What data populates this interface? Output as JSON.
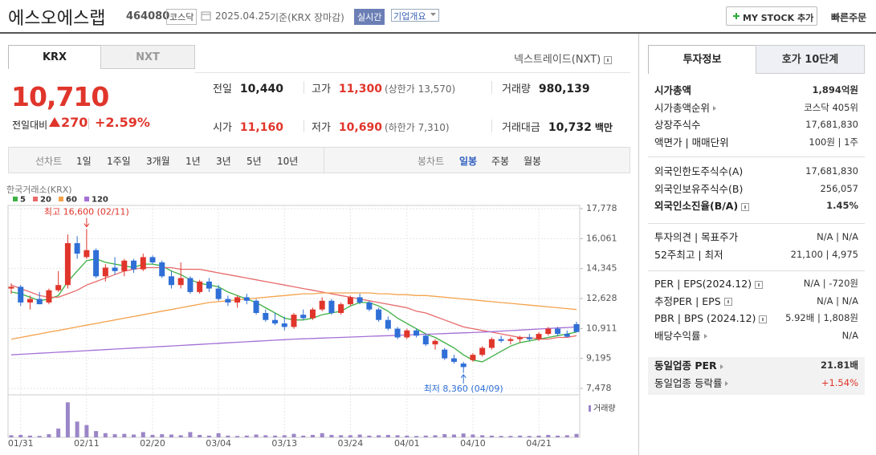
{
  "header": {
    "name": "에스오에스랩",
    "code": "464080",
    "market": "코스닥",
    "date": "2025.04.25",
    "basis": "기준(KRX 장마감)",
    "realtime": "실시간",
    "overview": "기업개요",
    "my_stock": "MY STOCK 추가",
    "quick_order": "빠른주문"
  },
  "exchange_tabs": [
    "KRX",
    "NXT"
  ],
  "nxt_link": "넥스트레이드(NXT)",
  "price": {
    "current": "10,710",
    "change_label": "전일대비",
    "change": "270",
    "change_pct": "+2.59%"
  },
  "quote": [
    {
      "label": "전일",
      "value": "10,440"
    },
    {
      "label": "고가",
      "value": "11,300",
      "note": "(상한가 13,570)",
      "color": "#e0352b"
    },
    {
      "label": "거래량",
      "value": "980,139"
    },
    {
      "label": "시가",
      "value": "11,160",
      "color": "#e0352b"
    },
    {
      "label": "저가",
      "value": "10,690",
      "note": "(하한가 7,310)",
      "color": "#e0352b"
    },
    {
      "label": "거래대금",
      "value": "10,732",
      "unit": "백만"
    }
  ],
  "chart_toolbar": {
    "line_label": "선차트",
    "periods": [
      "1일",
      "1주일",
      "3개월",
      "1년",
      "3년",
      "5년",
      "10년"
    ],
    "candle_label": "봉차트",
    "candle_periods": [
      "일봉",
      "주봉",
      "월봉"
    ]
  },
  "chart_data": {
    "type": "candlestick",
    "source": "한국거래소(KRX)",
    "categories": [
      null,
      "01/31",
      null,
      null,
      null,
      null,
      null,
      null,
      "02/11",
      null,
      null,
      null,
      null,
      null,
      null,
      "02/20",
      null,
      null,
      null,
      null,
      null,
      null,
      "03/04",
      null,
      null,
      null,
      null,
      null,
      null,
      "03/13",
      null,
      null,
      null,
      null,
      null,
      null,
      "03/24",
      null,
      null,
      null,
      null,
      null,
      "04/01",
      null,
      null,
      null,
      null,
      null,
      null,
      "04/10",
      null,
      null,
      null,
      null,
      null,
      null,
      "04/21",
      null,
      null,
      null,
      null
    ],
    "open": [
      13200,
      13300,
      12400,
      12600,
      12400,
      13100,
      13400,
      15800,
      15000,
      15400,
      13900,
      14400,
      14200,
      14800,
      14300,
      15000,
      14700,
      13900,
      13400,
      13800,
      13000,
      13600,
      13200,
      12600,
      12400,
      12700,
      12500,
      11800,
      11400,
      11200,
      11000,
      11700,
      11500,
      12000,
      12500,
      11800,
      12300,
      12700,
      12400,
      12000,
      11400,
      10900,
      10400,
      10800,
      10500,
      10000,
      9700,
      9200,
      8900,
      9100,
      9400,
      9800,
      10300,
      10200,
      10300,
      10400,
      10300,
      10600,
      10900,
      10600,
      11160
    ],
    "high": [
      13500,
      13400,
      12800,
      13000,
      13200,
      14200,
      16300,
      16200,
      16600,
      15500,
      14600,
      15000,
      14900,
      14900,
      15200,
      15100,
      14800,
      14200,
      14700,
      13900,
      13700,
      13800,
      13400,
      12800,
      12800,
      12900,
      12600,
      12000,
      11800,
      11600,
      11800,
      12000,
      12100,
      12700,
      12600,
      12400,
      12800,
      12900,
      12500,
      12100,
      11600,
      11000,
      10900,
      10900,
      10600,
      10300,
      9800,
      9400,
      9000,
      9500,
      9900,
      10400,
      10500,
      10400,
      10500,
      10600,
      10700,
      11000,
      11000,
      10800,
      11300
    ],
    "low": [
      12900,
      12200,
      12000,
      12300,
      12300,
      13000,
      13200,
      14900,
      14900,
      13800,
      13600,
      14000,
      13900,
      14100,
      14200,
      14600,
      13800,
      13200,
      13200,
      12900,
      12900,
      13000,
      12500,
      12200,
      12100,
      12300,
      11700,
      11300,
      11100,
      10800,
      10900,
      11400,
      11400,
      11900,
      11700,
      11700,
      12200,
      12300,
      11900,
      11300,
      10800,
      10300,
      10300,
      10400,
      9900,
      9700,
      9100,
      8900,
      8360,
      9000,
      9300,
      9700,
      10100,
      10000,
      10100,
      10200,
      10200,
      10500,
      10500,
      10400,
      10690
    ],
    "close": [
      13300,
      12400,
      12600,
      12300,
      13100,
      13400,
      15800,
      15200,
      15400,
      13900,
      14400,
      14200,
      14800,
      14300,
      15000,
      14700,
      13900,
      13400,
      13800,
      13000,
      13600,
      13200,
      12600,
      12400,
      12700,
      12500,
      11800,
      11400,
      11200,
      11000,
      11700,
      11500,
      12000,
      12500,
      11800,
      12300,
      12700,
      12400,
      12000,
      11400,
      10900,
      10400,
      10800,
      10500,
      10000,
      10200,
      9200,
      9000,
      8700,
      9400,
      9800,
      10300,
      10200,
      10300,
      10400,
      10300,
      10600,
      10900,
      10600,
      10440,
      10710
    ],
    "up_color": "#e0352b",
    "down_color": "#2f6fd6",
    "ylim": [
      7110,
      17962
    ],
    "yticks": [
      {
        "value": 17778,
        "label": "17,778"
      },
      {
        "value": 16061,
        "label": "16,061"
      },
      {
        "value": 14345,
        "label": "14,345"
      },
      {
        "value": 12628,
        "label": "12,628"
      },
      {
        "value": 10911,
        "label": "10,911"
      },
      {
        "value": 9195,
        "label": "9,195"
      },
      {
        "value": 7478,
        "label": "7,478"
      }
    ],
    "grid": true,
    "moving_averages": [
      {
        "name": "5",
        "color": "#3cb043",
        "values": [
          13000,
          12900,
          12700,
          12500,
          12600,
          12800,
          13600,
          14200,
          14800,
          14900,
          14700,
          14600,
          14500,
          14400,
          14600,
          14600,
          14500,
          14200,
          14000,
          13700,
          13500,
          13400,
          13300,
          13000,
          12800,
          12600,
          12400,
          12100,
          11800,
          11500,
          11400,
          11400,
          11500,
          11700,
          11800,
          11900,
          12200,
          12400,
          12400,
          12200,
          11900,
          11500,
          11200,
          10900,
          10600,
          10400,
          10100,
          9800,
          9400,
          9100,
          9000,
          9300,
          9600,
          9900,
          10100,
          10200,
          10300,
          10400,
          10500,
          10600,
          10700
        ]
      },
      {
        "name": "20",
        "color": "#e86a6a",
        "values": [
          13400,
          13200,
          13000,
          12800,
          12700,
          12700,
          12900,
          13100,
          13400,
          13600,
          13800,
          14000,
          14200,
          14300,
          14400,
          14400,
          14400,
          14400,
          14300,
          14300,
          14300,
          14200,
          14100,
          14000,
          13900,
          13800,
          13700,
          13600,
          13500,
          13400,
          13300,
          13200,
          13100,
          13000,
          12900,
          12800,
          12700,
          12600,
          12500,
          12400,
          12300,
          12200,
          12100,
          11900,
          11800,
          11600,
          11400,
          11200,
          11000,
          10900,
          10800,
          10700,
          10600,
          10500,
          10400,
          10400,
          10300,
          10300,
          10400,
          10400,
          10500
        ]
      },
      {
        "name": "60",
        "color": "#f5a24b",
        "values": [
          10300,
          10400,
          10500,
          10600,
          10700,
          10800,
          10900,
          11000,
          11100,
          11200,
          11300,
          11400,
          11500,
          11600,
          11700,
          11800,
          11900,
          12000,
          12100,
          12200,
          12300,
          12400,
          12450,
          12500,
          12550,
          12600,
          12650,
          12700,
          12750,
          12800,
          12850,
          12900,
          12900,
          12950,
          12950,
          12950,
          12950,
          12950,
          12950,
          12900,
          12900,
          12850,
          12850,
          12800,
          12800,
          12750,
          12700,
          12650,
          12600,
          12550,
          12500,
          12450,
          12400,
          12350,
          12300,
          12250,
          12200,
          12150,
          12100,
          12050,
          12000
        ]
      },
      {
        "name": "120",
        "color": "#a46fd6",
        "values": [
          9400,
          9430,
          9460,
          9490,
          9520,
          9550,
          9580,
          9610,
          9640,
          9670,
          9700,
          9730,
          9760,
          9790,
          9820,
          9850,
          9880,
          9910,
          9940,
          9970,
          10000,
          10030,
          10060,
          10090,
          10120,
          10150,
          10180,
          10210,
          10240,
          10270,
          10300,
          10320,
          10340,
          10360,
          10380,
          10400,
          10420,
          10440,
          10460,
          10480,
          10500,
          10520,
          10540,
          10560,
          10580,
          10600,
          10620,
          10640,
          10660,
          10680,
          10700,
          10730,
          10760,
          10790,
          10820,
          10850,
          10880,
          10910,
          10940,
          10970,
          11000
        ]
      }
    ],
    "volume": [
      600000,
      700000,
      500000,
      400000,
      900000,
      2500000,
      10000000,
      4500000,
      3500000,
      1800000,
      1200000,
      900000,
      1000000,
      800000,
      1500000,
      700000,
      900000,
      800000,
      600000,
      1500000,
      700000,
      500000,
      1200000,
      500000,
      400000,
      500000,
      800000,
      600000,
      500000,
      600000,
      1000000,
      500000,
      700000,
      1200000,
      700000,
      600000,
      600000,
      800000,
      500000,
      600000,
      700000,
      600000,
      500000,
      400000,
      500000,
      600000,
      900000,
      800000,
      1100000,
      800000,
      600000,
      500000,
      400000,
      400000,
      500000,
      400000,
      500000,
      700000,
      500000,
      600000,
      980139
    ],
    "volume_lim": [
      0,
      11000000
    ],
    "volume_color": "#9b86c7",
    "volume_label": "거래량",
    "annotations": {
      "high": "최고 16,600 (02/11)",
      "low": "최저 8,360 (04/09)"
    }
  },
  "invest_tabs": [
    "투자정보",
    "호가 10단계"
  ],
  "invest_info": [
    [
      {
        "label": "시가총액",
        "value": "1,894억원"
      },
      {
        "label": "시가총액순위",
        "value": "코스닥 405위"
      },
      {
        "label": "상장주식수",
        "value": "17,681,830"
      },
      {
        "label": "액면가 | 매매단위",
        "value": "100원 | 1주"
      }
    ],
    [
      {
        "label": "외국인한도주식수(A)",
        "value": "17,681,830"
      },
      {
        "label": "외국인보유주식수(B)",
        "value": "256,057"
      },
      {
        "label": "외국인소진율(B/A)",
        "value": "1.45%"
      }
    ],
    [
      {
        "label": "투자의견 | 목표주가",
        "value": "N/A | N/A"
      },
      {
        "label": "52주최고 | 최저",
        "value": "21,100 | 4,975"
      }
    ],
    [
      {
        "label": "PER | EPS(2024.12)",
        "value": "N/A | -720원"
      },
      {
        "label": "추정PER | EPS",
        "value": "N/A | N/A"
      },
      {
        "label": "PBR | BPS (2024.12)",
        "value": "5.92배 | 1,808원"
      },
      {
        "label": "배당수익률",
        "value": "N/A"
      }
    ],
    [
      {
        "label": "동일업종 PER",
        "value": "21.81배"
      },
      {
        "label": "동일업종 등락률",
        "value": "+1.54%"
      }
    ]
  ]
}
